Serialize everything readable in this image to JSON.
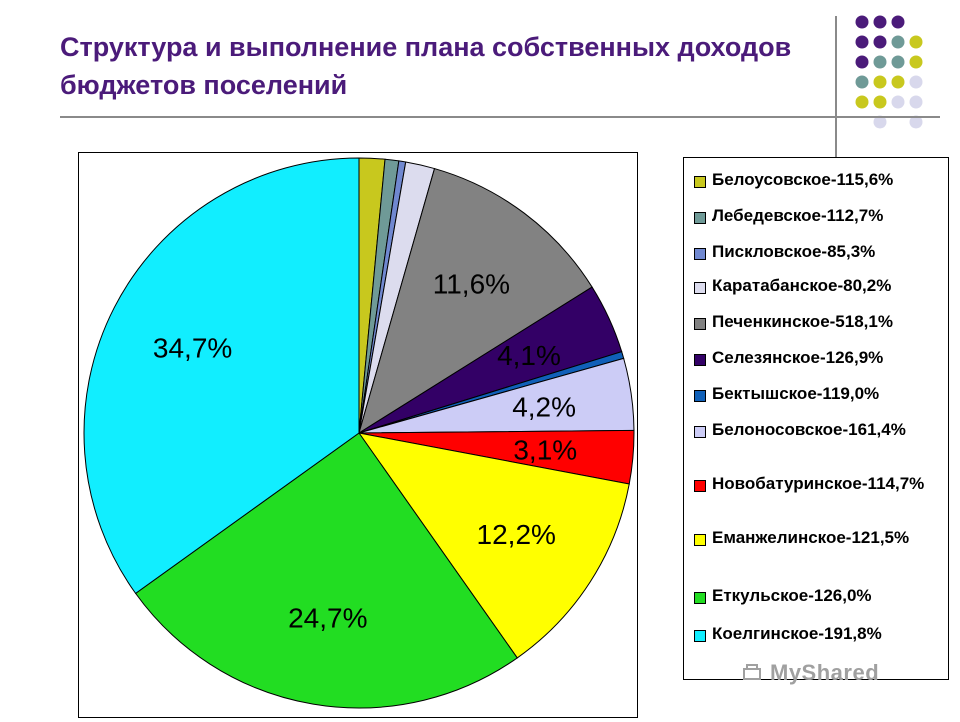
{
  "title": "Структура и выполнение плана собственных доходов бюджетов поселений",
  "watermark": "MyShared",
  "chart_data": {
    "type": "pie",
    "title": "Структура и выполнение плана собственных доходов бюджетов поселений",
    "categories": [
      "Белоусовское-115,6%",
      "Лебедевское-112,7%",
      "Пискловское-85,3%",
      "Каратабанское-80,2%",
      "Печенкинское-518,1%",
      "Селезянское-126,9%",
      "Бектышское-119,0%",
      "Белоносовское-161,4%",
      "Новобатуринское-114,7%",
      "Еманжелинское-121,5%",
      "Еткульское-126,0%",
      "Коелгинское-191,8%"
    ],
    "values": [
      1.5,
      0.8,
      0.4,
      1.7,
      11.6,
      4.1,
      0.4,
      4.2,
      3.1,
      12.2,
      24.7,
      34.7
    ],
    "data_labels": [
      "",
      "",
      "",
      "",
      "11,6%",
      "4,1%",
      "",
      "4,2%",
      "3,1%",
      "12,2%",
      "24,7%",
      "34,7%"
    ],
    "colors": [
      "#c8c81e",
      "#6f9a97",
      "#7088d0",
      "#dcdcee",
      "#828282",
      "#330066",
      "#1060b8",
      "#ccccf6",
      "#ff0000",
      "#ffff00",
      "#22dd22",
      "#11eeff"
    ],
    "legend_position": "right"
  }
}
